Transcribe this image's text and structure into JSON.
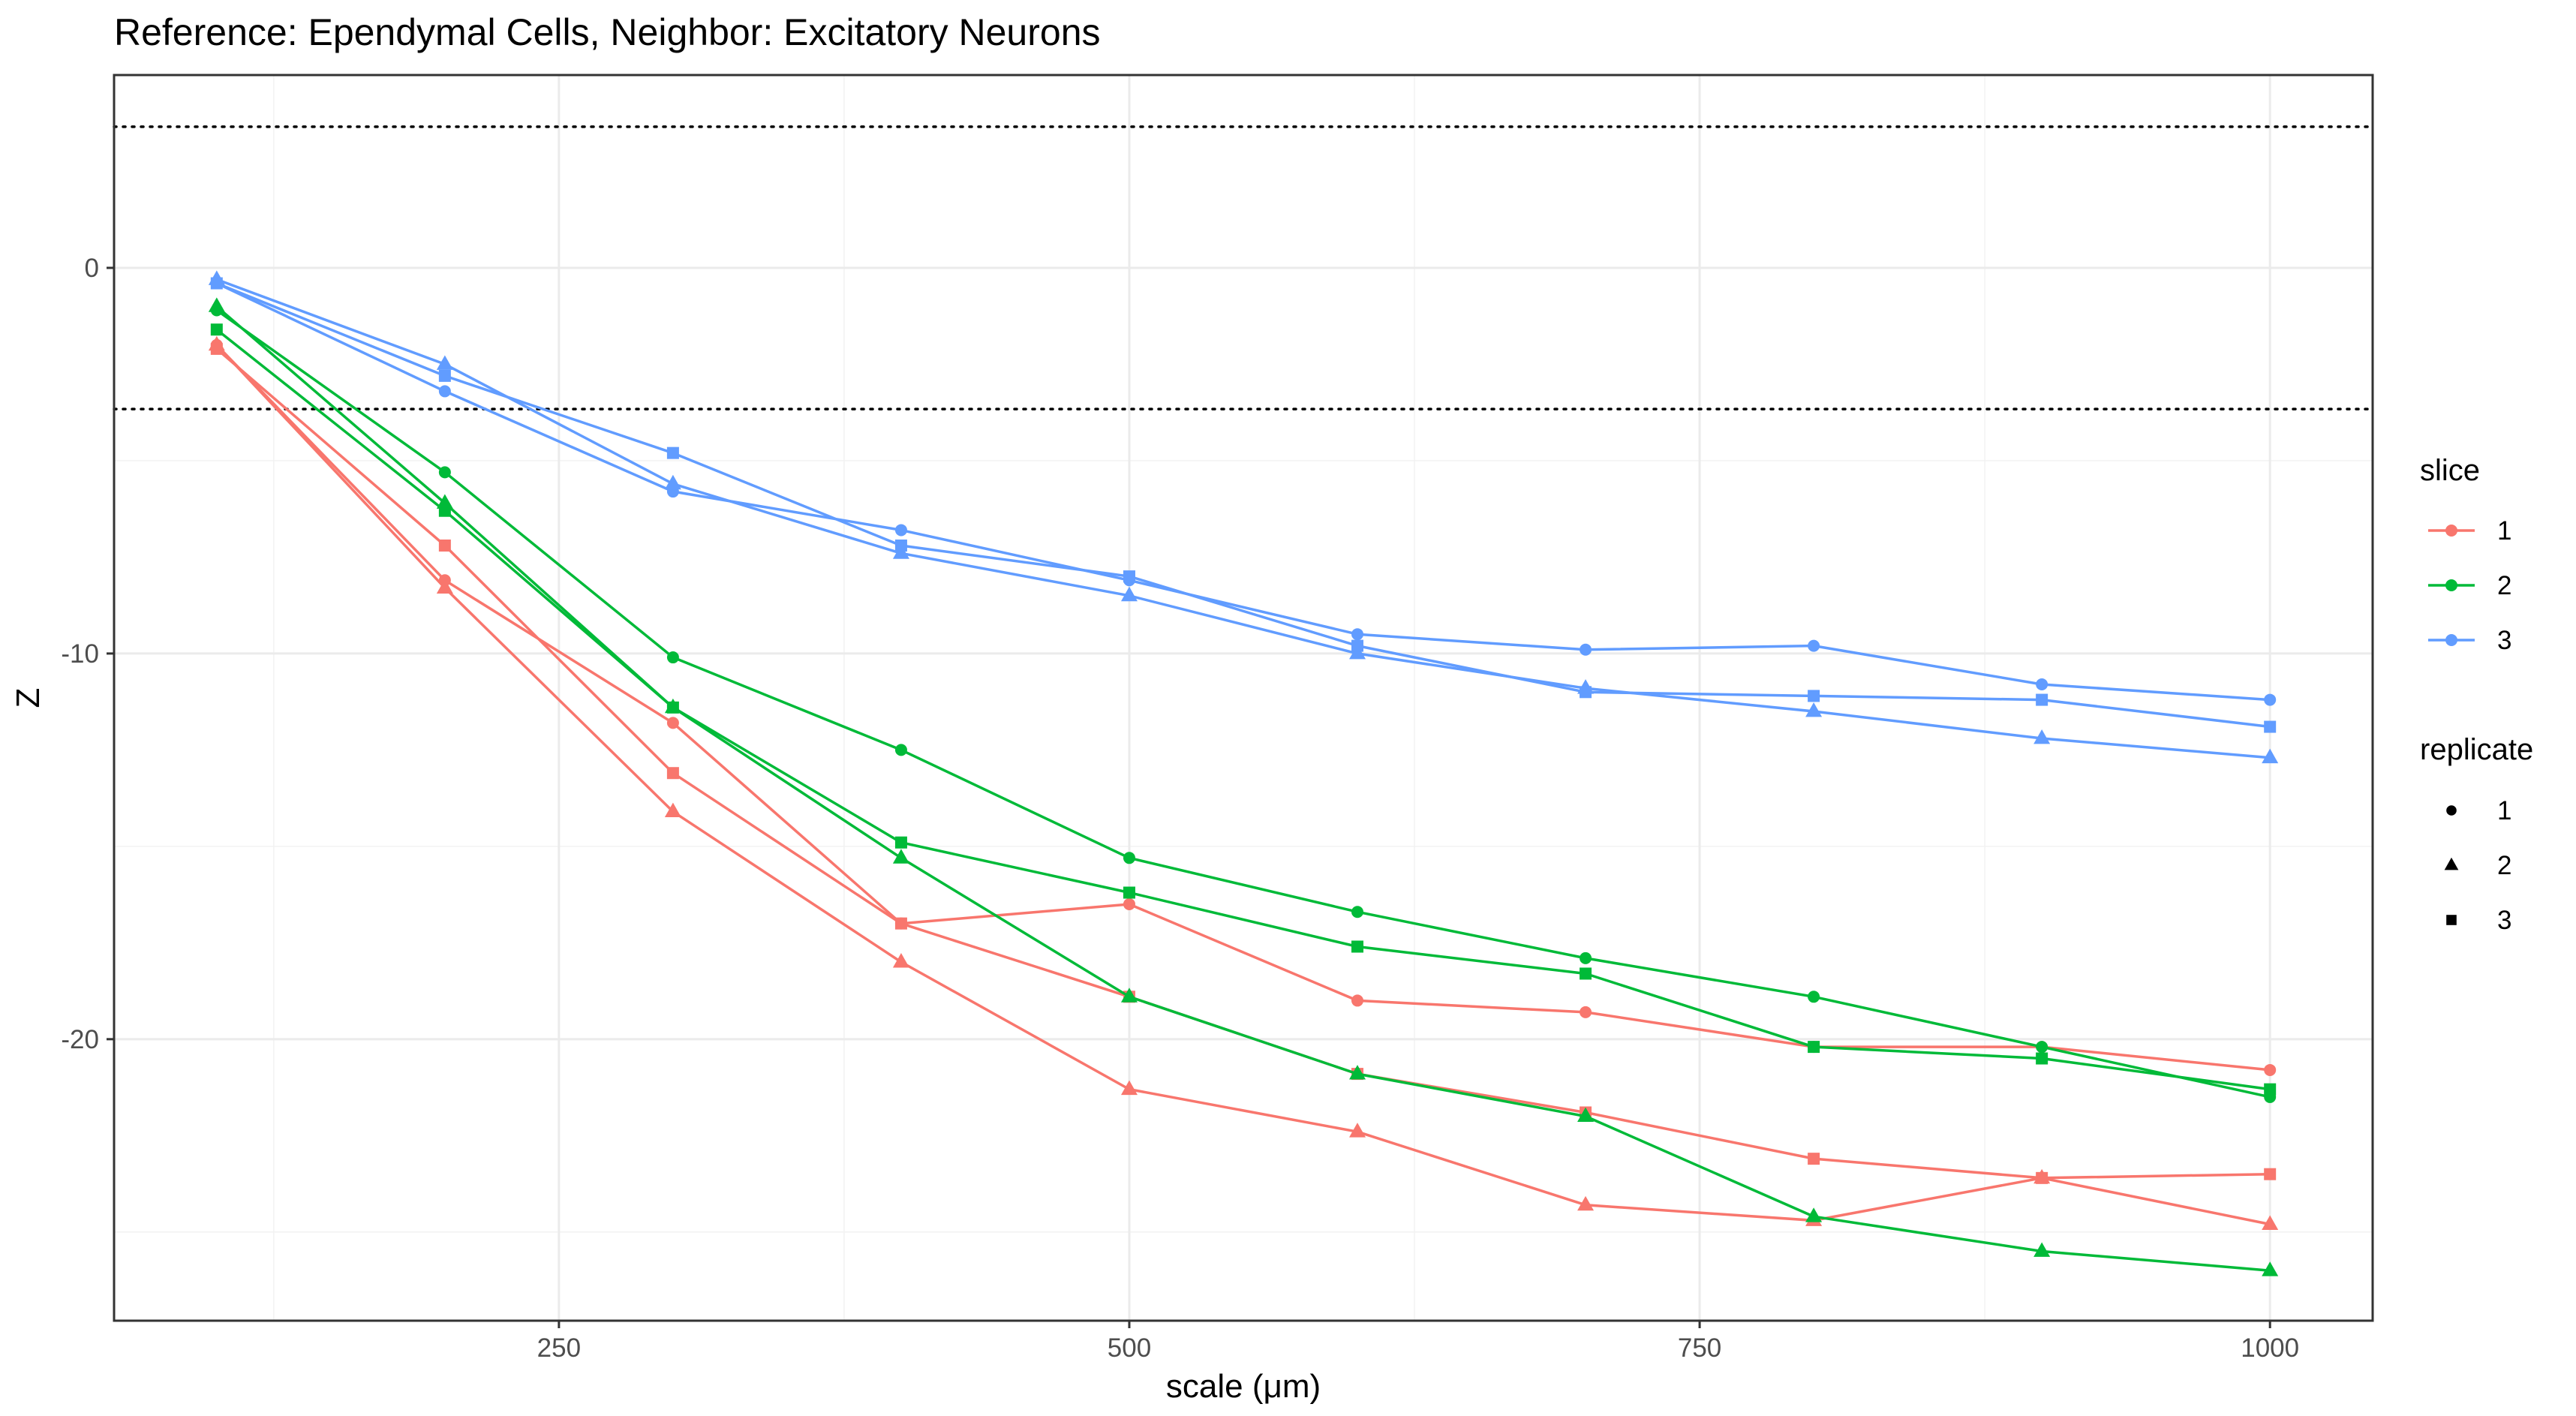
{
  "chart_data": {
    "type": "line",
    "title": "Reference: Ependymal Cells, Neighbor: Excitatory Neurons",
    "xlabel": "scale (μm)",
    "ylabel": "Z",
    "xlim": [
      55,
      1045
    ],
    "ylim": [
      -27.3,
      5.0
    ],
    "x_ticks": [
      {
        "value": 250,
        "label": "250"
      },
      {
        "value": 500,
        "label": "500"
      },
      {
        "value": 750,
        "label": "750"
      },
      {
        "value": 1000,
        "label": "1000"
      }
    ],
    "y_ticks": [
      {
        "value": 0,
        "label": "0"
      },
      {
        "value": -10,
        "label": "-10"
      },
      {
        "value": -20,
        "label": "-20"
      }
    ],
    "x_minor": [
      125,
      375,
      625,
      875
    ],
    "y_minor": [
      5,
      -5,
      -15,
      -25
    ],
    "grid": true,
    "reference_lines": [
      3.66,
      -3.66
    ],
    "legend_position": "right",
    "legend": {
      "color_title": "slice",
      "shape_title": "replicate",
      "color_entries": [
        {
          "label": "1",
          "color": "#F8766D"
        },
        {
          "label": "2",
          "color": "#00BA38"
        },
        {
          "label": "3",
          "color": "#619CFF"
        }
      ],
      "shape_entries": [
        {
          "label": "1",
          "shape": "circle"
        },
        {
          "label": "2",
          "shape": "triangle"
        },
        {
          "label": "3",
          "shape": "square"
        }
      ]
    },
    "x": [
      100,
      200,
      300,
      400,
      500,
      600,
      700,
      800,
      900,
      1000
    ],
    "series": [
      {
        "slice": "1",
        "replicate": "1",
        "color": "#F8766D",
        "shape": "circle",
        "values": [
          -2.0,
          -8.1,
          -11.8,
          -17.0,
          -16.5,
          -19.0,
          -19.3,
          -20.2,
          -20.2,
          -20.8
        ]
      },
      {
        "slice": "1",
        "replicate": "2",
        "color": "#F8766D",
        "shape": "triangle",
        "values": [
          -2.0,
          -8.3,
          -14.1,
          -18.0,
          -21.3,
          -22.4,
          -24.3,
          -24.7,
          -23.6,
          -24.8
        ]
      },
      {
        "slice": "1",
        "replicate": "3",
        "color": "#F8766D",
        "shape": "square",
        "values": [
          -2.1,
          -7.2,
          -13.1,
          -17.0,
          -18.9,
          -20.9,
          -21.9,
          -23.1,
          -23.6,
          -23.5
        ]
      },
      {
        "slice": "2",
        "replicate": "1",
        "color": "#00BA38",
        "shape": "circle",
        "values": [
          -1.1,
          -5.3,
          -10.1,
          -12.5,
          -15.3,
          -16.7,
          -17.9,
          -18.9,
          -20.2,
          -21.5
        ]
      },
      {
        "slice": "2",
        "replicate": "2",
        "color": "#00BA38",
        "shape": "triangle",
        "values": [
          -1.0,
          -6.1,
          -11.4,
          -15.3,
          -18.9,
          -20.9,
          -22.0,
          -24.6,
          -25.5,
          -26.0
        ]
      },
      {
        "slice": "2",
        "replicate": "3",
        "color": "#00BA38",
        "shape": "square",
        "values": [
          -1.6,
          -6.3,
          -11.4,
          -14.9,
          -16.2,
          -17.6,
          -18.3,
          -20.2,
          -20.5,
          -21.3
        ]
      },
      {
        "slice": "3",
        "replicate": "1",
        "color": "#619CFF",
        "shape": "circle",
        "values": [
          -0.4,
          -3.2,
          -5.8,
          -6.8,
          -8.1,
          -9.5,
          -9.9,
          -9.8,
          -10.8,
          -11.2
        ]
      },
      {
        "slice": "3",
        "replicate": "2",
        "color": "#619CFF",
        "shape": "triangle",
        "values": [
          -0.3,
          -2.5,
          -5.6,
          -7.4,
          -8.5,
          -10.0,
          -10.9,
          -11.5,
          -12.2,
          -12.7
        ]
      },
      {
        "slice": "3",
        "replicate": "3",
        "color": "#619CFF",
        "shape": "square",
        "values": [
          -0.4,
          -2.8,
          -4.8,
          -7.2,
          -8.0,
          -9.8,
          -11.0,
          -11.1,
          -11.2,
          -11.9
        ]
      }
    ]
  }
}
